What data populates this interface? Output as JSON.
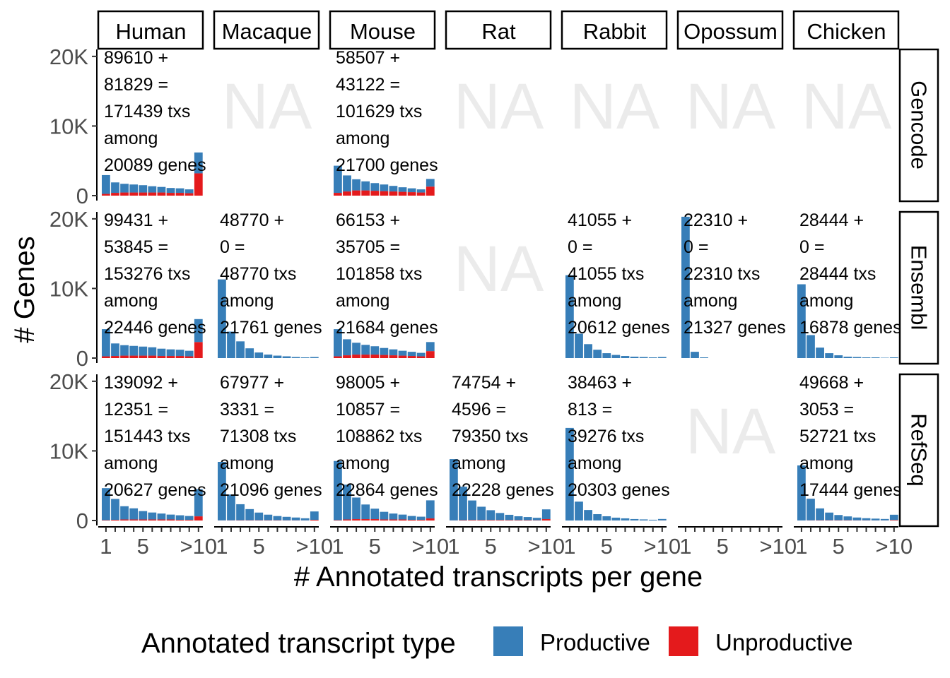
{
  "chart_data": {
    "type": "bar",
    "stacked": true,
    "xlabel": "# Annotated transcripts per gene",
    "ylabel": "# Genes",
    "y_ticks": [
      {
        "value": 0,
        "label": "0"
      },
      {
        "value": 10000,
        "label": "10K"
      },
      {
        "value": 20000,
        "label": "20K"
      }
    ],
    "ylim": [
      0,
      21000
    ],
    "categories": [
      "1",
      "2",
      "3",
      "4",
      "5",
      "6",
      "7",
      "8",
      "9",
      "10",
      ">10"
    ],
    "x_ticks": [
      {
        "value": "1",
        "label": "1"
      },
      {
        "value": "5",
        "label": "5"
      },
      {
        "value": ">10",
        "label": ">10"
      }
    ],
    "grid": false,
    "legend": {
      "title": "Annotated transcript type",
      "placement": "bottom",
      "entries": [
        {
          "name": "Productive",
          "color": "#377EB8"
        },
        {
          "name": "Unproductive",
          "color": "#E41A1C"
        }
      ]
    },
    "series_colors": {
      "productive": "#377EB8",
      "unproductive": "#E41A1C"
    },
    "species": [
      "Human",
      "Macaque",
      "Mouse",
      "Rat",
      "Rabbit",
      "Opossum",
      "Chicken"
    ],
    "sources": [
      "Gencode",
      "Ensembl",
      "RefSeq"
    ],
    "na_label": "NA",
    "panels": [
      {
        "species": "Human",
        "source": "Gencode",
        "empty": false,
        "na": false,
        "annotation": [
          "89610 +",
          "81829 =",
          "171439 txs",
          "among",
          "20089 genes"
        ],
        "productive": [
          2700,
          1500,
          1250,
          1150,
          1050,
          900,
          800,
          700,
          650,
          550,
          3000
        ],
        "unproductive": [
          250,
          400,
          450,
          450,
          450,
          450,
          450,
          400,
          400,
          350,
          3200
        ]
      },
      {
        "species": "Macaque",
        "source": "Gencode",
        "empty": true,
        "na": true
      },
      {
        "species": "Mouse",
        "source": "Gencode",
        "empty": false,
        "na": false,
        "annotation": [
          "58507 +",
          "43122 =",
          "101629 txs",
          "among",
          "21700 genes"
        ],
        "productive": [
          3900,
          2300,
          1600,
          1300,
          1100,
          950,
          800,
          650,
          550,
          450,
          1100
        ],
        "unproductive": [
          400,
          600,
          750,
          750,
          700,
          650,
          600,
          550,
          500,
          450,
          1300
        ]
      },
      {
        "species": "Rat",
        "source": "Gencode",
        "empty": true,
        "na": true
      },
      {
        "species": "Rabbit",
        "source": "Gencode",
        "empty": true,
        "na": true
      },
      {
        "species": "Opossum",
        "source": "Gencode",
        "empty": true,
        "na": true
      },
      {
        "species": "Chicken",
        "source": "Gencode",
        "empty": true,
        "na": true
      },
      {
        "species": "Human",
        "source": "Ensembl",
        "empty": false,
        "na": false,
        "annotation": [
          "99431 +",
          "53845 =",
          "153276 txs",
          "among",
          "22446 genes"
        ],
        "productive": [
          3900,
          1800,
          1500,
          1400,
          1300,
          1200,
          1050,
          950,
          900,
          800,
          3300
        ],
        "unproductive": [
          250,
          300,
          350,
          350,
          350,
          350,
          300,
          300,
          300,
          250,
          2300
        ]
      },
      {
        "species": "Macaque",
        "source": "Ensembl",
        "empty": false,
        "na": false,
        "annotation": [
          "48770 +",
          "0 =",
          "48770 txs",
          "among",
          "21761 genes"
        ],
        "productive": [
          11300,
          3800,
          2400,
          1400,
          800,
          500,
          350,
          250,
          150,
          100,
          150
        ],
        "unproductive": [
          0,
          0,
          0,
          0,
          0,
          0,
          0,
          0,
          0,
          0,
          0
        ]
      },
      {
        "species": "Mouse",
        "source": "Ensembl",
        "empty": false,
        "na": false,
        "annotation": [
          "66153 +",
          "35705 =",
          "101858 txs",
          "among",
          "21684 genes"
        ],
        "productive": [
          3900,
          2300,
          1700,
          1400,
          1200,
          1000,
          850,
          700,
          600,
          500,
          1300
        ],
        "unproductive": [
          250,
          400,
          500,
          500,
          500,
          450,
          400,
          350,
          300,
          250,
          1000
        ]
      },
      {
        "species": "Rat",
        "source": "Ensembl",
        "empty": true,
        "na": true
      },
      {
        "species": "Rabbit",
        "source": "Ensembl",
        "empty": false,
        "na": false,
        "annotation": [
          "41055 +",
          "0 =",
          "41055 txs",
          "among",
          "20612 genes"
        ],
        "productive": [
          11900,
          3500,
          2000,
          1200,
          700,
          450,
          300,
          200,
          150,
          100,
          150
        ],
        "unproductive": [
          0,
          0,
          0,
          0,
          0,
          0,
          0,
          0,
          0,
          0,
          0
        ]
      },
      {
        "species": "Opossum",
        "source": "Ensembl",
        "empty": false,
        "na": false,
        "annotation": [
          "22310 +",
          "0 =",
          "22310 txs",
          "among",
          "21327 genes"
        ],
        "productive": [
          20300,
          900,
          100,
          0,
          0,
          0,
          0,
          0,
          0,
          0,
          0
        ],
        "unproductive": [
          0,
          0,
          0,
          0,
          0,
          0,
          0,
          0,
          0,
          0,
          0
        ]
      },
      {
        "species": "Chicken",
        "source": "Ensembl",
        "empty": false,
        "na": false,
        "annotation": [
          "28444 +",
          "0 =",
          "28444 txs",
          "among",
          "16878 genes"
        ],
        "productive": [
          10600,
          3300,
          1500,
          700,
          400,
          200,
          150,
          100,
          100,
          50,
          100
        ],
        "unproductive": [
          0,
          0,
          0,
          0,
          0,
          0,
          0,
          0,
          0,
          0,
          0
        ]
      },
      {
        "species": "Human",
        "source": "RefSeq",
        "empty": false,
        "na": false,
        "annotation": [
          "139092 +",
          "12351 =",
          "151443 txs",
          "among",
          "20627 genes"
        ],
        "productive": [
          4600,
          3000,
          1900,
          1600,
          1200,
          1000,
          850,
          700,
          650,
          550,
          3900
        ],
        "unproductive": [
          50,
          100,
          150,
          150,
          150,
          150,
          150,
          150,
          100,
          100,
          600
        ]
      },
      {
        "species": "Macaque",
        "source": "RefSeq",
        "empty": false,
        "na": false,
        "annotation": [
          "67977 +",
          "3331 =",
          "71308 txs",
          "among",
          "21096 genes"
        ],
        "productive": [
          8400,
          3700,
          2300,
          1600,
          1100,
          800,
          600,
          500,
          400,
          300,
          1200
        ],
        "unproductive": [
          20,
          30,
          40,
          40,
          40,
          40,
          40,
          30,
          30,
          20,
          100
        ]
      },
      {
        "species": "Mouse",
        "source": "RefSeq",
        "empty": false,
        "na": false,
        "annotation": [
          "98005 +",
          "10857 =",
          "108862 txs",
          "among",
          "22864 genes"
        ],
        "productive": [
          8500,
          5000,
          3100,
          2100,
          1500,
          1100,
          850,
          700,
          550,
          450,
          2600
        ],
        "unproductive": [
          50,
          150,
          200,
          200,
          200,
          150,
          150,
          150,
          100,
          100,
          300
        ]
      },
      {
        "species": "Rat",
        "source": "RefSeq",
        "empty": false,
        "na": false,
        "annotation": [
          "74754 +",
          "4596 =",
          "79350 txs",
          "among",
          "22228 genes"
        ],
        "productive": [
          8800,
          4800,
          2800,
          1900,
          1400,
          1000,
          750,
          550,
          450,
          350,
          1400
        ],
        "unproductive": [
          20,
          50,
          80,
          80,
          80,
          80,
          70,
          60,
          50,
          40,
          200
        ]
      },
      {
        "species": "Rabbit",
        "source": "RefSeq",
        "empty": false,
        "na": false,
        "annotation": [
          "38463 +",
          "813 =",
          "39276 txs",
          "among",
          "20303 genes"
        ],
        "productive": [
          13300,
          2700,
          1500,
          900,
          600,
          400,
          300,
          200,
          150,
          100,
          200
        ],
        "unproductive": [
          0,
          10,
          10,
          10,
          10,
          10,
          10,
          10,
          10,
          10,
          20
        ]
      },
      {
        "species": "Opossum",
        "source": "RefSeq",
        "empty": true,
        "na": true
      },
      {
        "species": "Chicken",
        "source": "RefSeq",
        "empty": false,
        "na": false,
        "annotation": [
          "49668 +",
          "3053 =",
          "52721 txs",
          "among",
          "17444 genes"
        ],
        "productive": [
          7900,
          3100,
          1700,
          1100,
          750,
          550,
          400,
          300,
          250,
          200,
          750
        ],
        "unproductive": [
          10,
          30,
          40,
          40,
          40,
          40,
          30,
          30,
          20,
          20,
          80
        ]
      }
    ]
  }
}
